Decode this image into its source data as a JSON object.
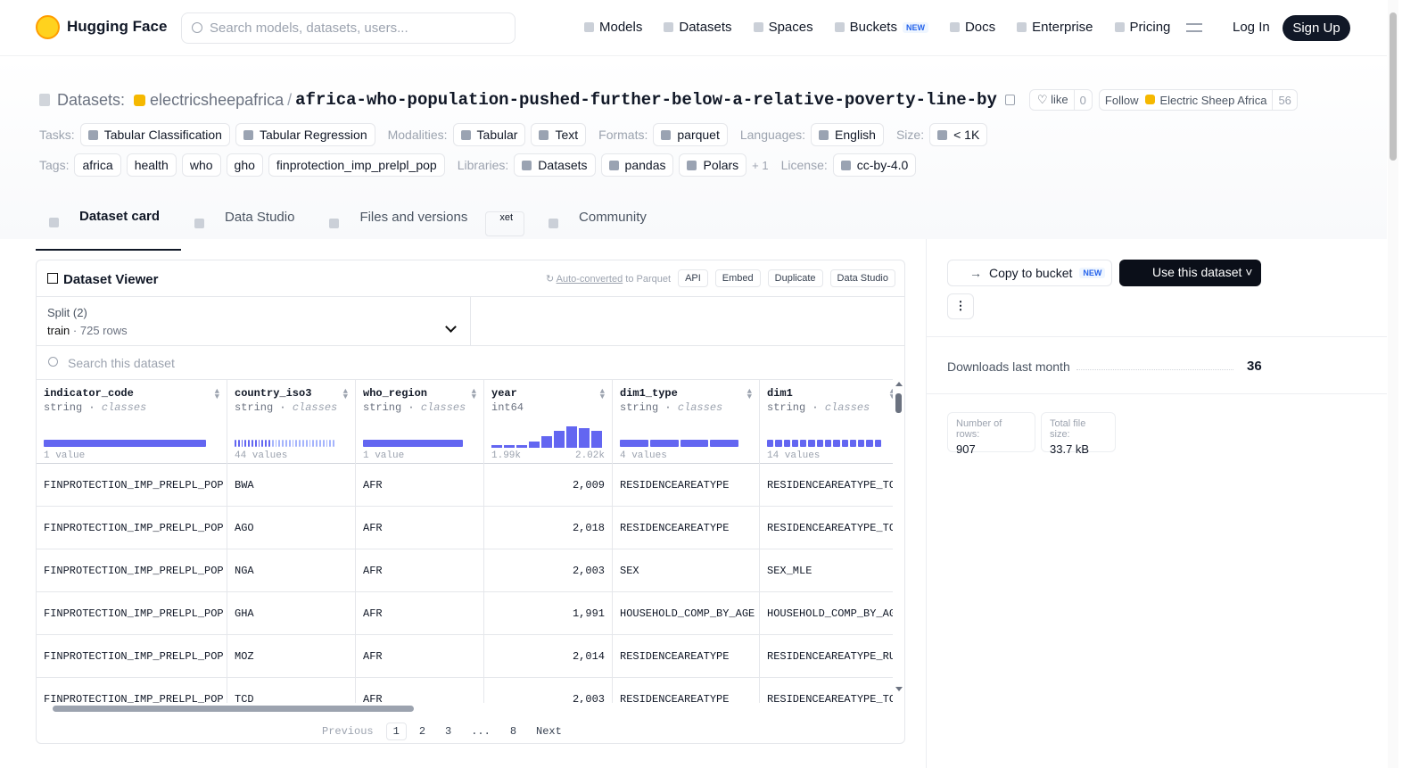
{
  "nav": {
    "brand": "Hugging Face",
    "search_placeholder": "Search models, datasets, users...",
    "links": [
      "Models",
      "Datasets",
      "Spaces",
      "Buckets",
      "Docs",
      "Enterprise",
      "Pricing"
    ],
    "new_badge": "NEW",
    "login": "Log In",
    "signup": "Sign Up"
  },
  "header": {
    "section": "Datasets:",
    "owner": "electricsheepafrica",
    "separator": "/",
    "name": "africa-who-population-pushed-further-below-a-relative-poverty-line-by",
    "like": "like",
    "likes": 0,
    "follow": "Follow",
    "org": "Electric Sheep Africa",
    "followers": 56,
    "meta": [
      {
        "label": "Tasks:",
        "items": [
          "Tabular Classification",
          "Tabular Regression"
        ]
      },
      {
        "label": "Modalities:",
        "items": [
          "Tabular",
          "Text"
        ]
      },
      {
        "label": "Formats:",
        "items": [
          "parquet"
        ]
      },
      {
        "label": "Languages:",
        "items": [
          "English"
        ]
      },
      {
        "label": "Size:",
        "items": [
          "< 1K"
        ]
      }
    ],
    "meta2": [
      {
        "label": "Tags:",
        "items": [
          "africa",
          "health",
          "who",
          "gho",
          "finprotection_imp_prelpl_pop"
        ]
      },
      {
        "label": "Libraries:",
        "items": [
          "Datasets",
          "pandas",
          "Polars"
        ],
        "more": "+ 1"
      },
      {
        "label": "License:",
        "items": [
          "cc-by-4.0"
        ]
      }
    ]
  },
  "tabs": {
    "items": [
      "Dataset card",
      "Data Studio",
      "Files and versions",
      "Community"
    ],
    "xet": "xet"
  },
  "viewer": {
    "title": "Dataset Viewer",
    "auto": "Auto-converted",
    "auto_rest": "to Parquet",
    "actions": [
      "API",
      "Embed",
      "Duplicate",
      "Data Studio"
    ],
    "split_label": "Split (2)",
    "split": "train",
    "split_rows": "725 rows",
    "search": "Search this dataset",
    "columns": [
      {
        "name": "indicator_code",
        "type": "string",
        "kind": "classes",
        "summary": "1 value"
      },
      {
        "name": "country_iso3",
        "type": "string",
        "kind": "classes",
        "summary": "44 values"
      },
      {
        "name": "who_region",
        "type": "string",
        "kind": "classes",
        "summary": "1 value"
      },
      {
        "name": "year",
        "type": "int64",
        "min": "1.99k",
        "max": "2.02k"
      },
      {
        "name": "dim1_type",
        "type": "string",
        "kind": "classes",
        "summary": "4 values"
      },
      {
        "name": "dim1",
        "type": "string",
        "kind": "classes",
        "summary": "14 values"
      }
    ],
    "rows": [
      [
        "FINPROTECTION_IMP_PRELPL_POP",
        "BWA",
        "AFR",
        "2,009",
        "RESIDENCEAREATYPE",
        "RESIDENCEAREATYPE_TO"
      ],
      [
        "FINPROTECTION_IMP_PRELPL_POP",
        "AGO",
        "AFR",
        "2,018",
        "RESIDENCEAREATYPE",
        "RESIDENCEAREATYPE_TO"
      ],
      [
        "FINPROTECTION_IMP_PRELPL_POP",
        "NGA",
        "AFR",
        "2,003",
        "SEX",
        "SEX_MLE"
      ],
      [
        "FINPROTECTION_IMP_PRELPL_POP",
        "GHA",
        "AFR",
        "1,991",
        "HOUSEHOLD_COMP_BY_AGE",
        "HOUSEHOLD_COMP_BY_AG"
      ],
      [
        "FINPROTECTION_IMP_PRELPL_POP",
        "MOZ",
        "AFR",
        "2,014",
        "RESIDENCEAREATYPE",
        "RESIDENCEAREATYPE_RU"
      ],
      [
        "FINPROTECTION_IMP_PRELPL_POP",
        "TCD",
        "AFR",
        "2,003",
        "RESIDENCEAREATYPE",
        "RESIDENCEAREATYPE_TO"
      ]
    ],
    "pagination": {
      "previous": "Previous",
      "pages": [
        "1",
        "2",
        "3",
        "...",
        "8"
      ],
      "next": "Next"
    }
  },
  "sidebar": {
    "copy": "Copy to bucket",
    "new": "NEW",
    "use": "Use this dataset",
    "downloads_label": "Downloads last month",
    "downloads": 36,
    "rows_label": "Number of rows:",
    "rows": 907,
    "size_label": "Total file size:",
    "size": "33.7 kB"
  }
}
